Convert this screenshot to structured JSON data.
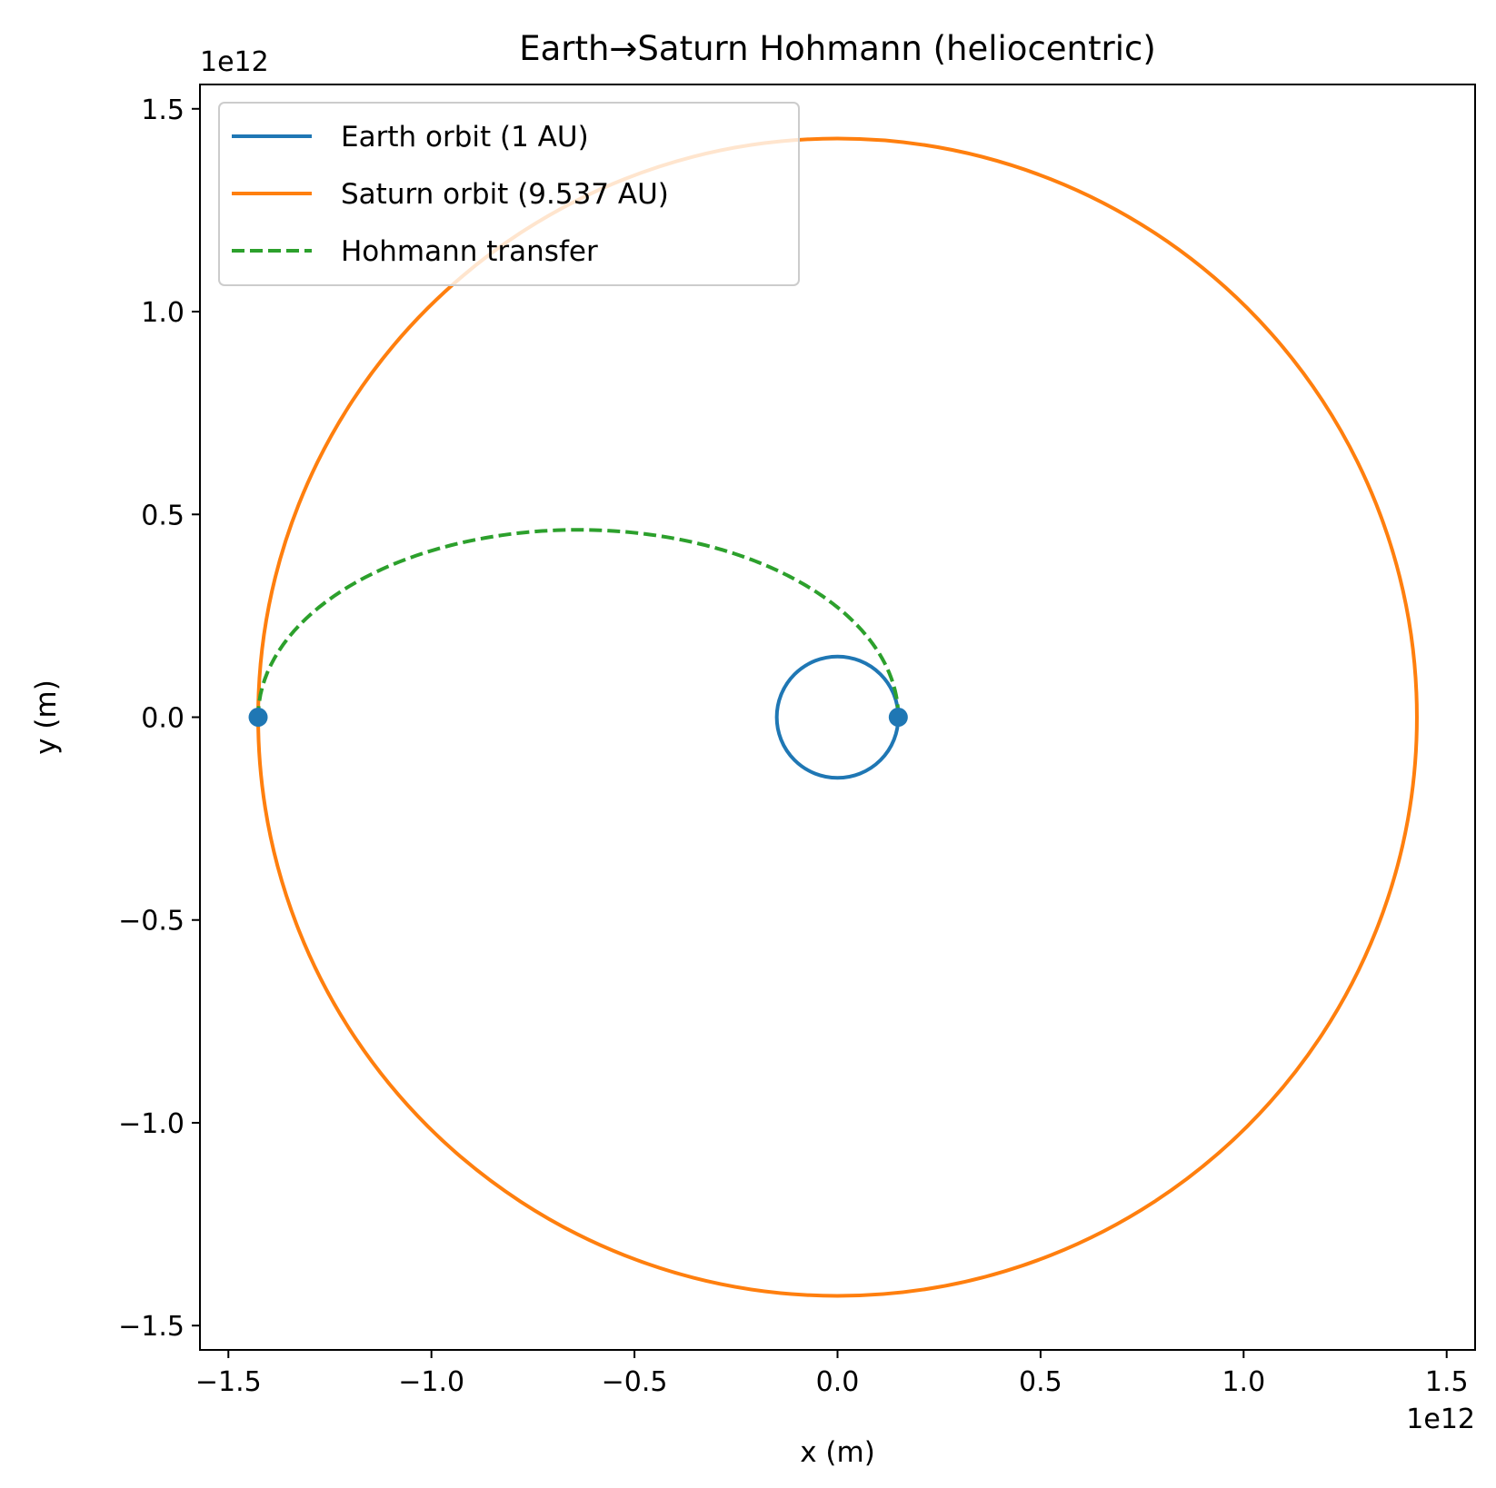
{
  "chart_data": {
    "type": "line",
    "title": "Earth→Saturn Hohmann (heliocentric)",
    "xlabel": "x (m)",
    "ylabel": "y (m)",
    "x_offset_text": "1e12",
    "y_offset_text": "1e12",
    "xlim": [
      -1570000000000.0,
      1570000000000.0
    ],
    "ylim": [
      -1560000000000.0,
      1560000000000.0
    ],
    "xticks": [
      -1500000000000.0,
      -1000000000000.0,
      -500000000000.0,
      0.0,
      500000000000.0,
      1000000000000.0,
      1500000000000.0
    ],
    "xtick_labels": [
      "−1.5",
      "−1.0",
      "−0.5",
      "0.0",
      "0.5",
      "1.0",
      "1.5"
    ],
    "yticks": [
      1500000000000.0,
      1000000000000.0,
      500000000000.0,
      0.0,
      -500000000000.0,
      -1000000000000.0,
      -1500000000000.0
    ],
    "ytick_labels": [
      "1.5",
      "1.0",
      "0.5",
      "0.0",
      "−0.5",
      "−1.0",
      "−1.5"
    ],
    "grid": false,
    "legend_position": "upper-left",
    "series": [
      {
        "name": "Earth orbit (1 AU)",
        "kind": "circle",
        "radius": 149600000000.0,
        "color": "#1f77b4",
        "line_style": "solid"
      },
      {
        "name": "Saturn orbit (9.537 AU)",
        "kind": "circle",
        "radius": 1426700000000.0,
        "color": "#ff7f0e",
        "line_style": "solid"
      },
      {
        "name": "Hohmann transfer",
        "kind": "half-ellipse",
        "periapsis": 149600000000.0,
        "apoapsis": 1426700000000.0,
        "color": "#2ca02c",
        "line_style": "dashed"
      }
    ],
    "markers": [
      {
        "x": 149600000000.0,
        "y": 0.0,
        "color": "#1f77b4"
      },
      {
        "x": -1426700000000.0,
        "y": 0.0,
        "color": "#1f77b4"
      }
    ]
  }
}
